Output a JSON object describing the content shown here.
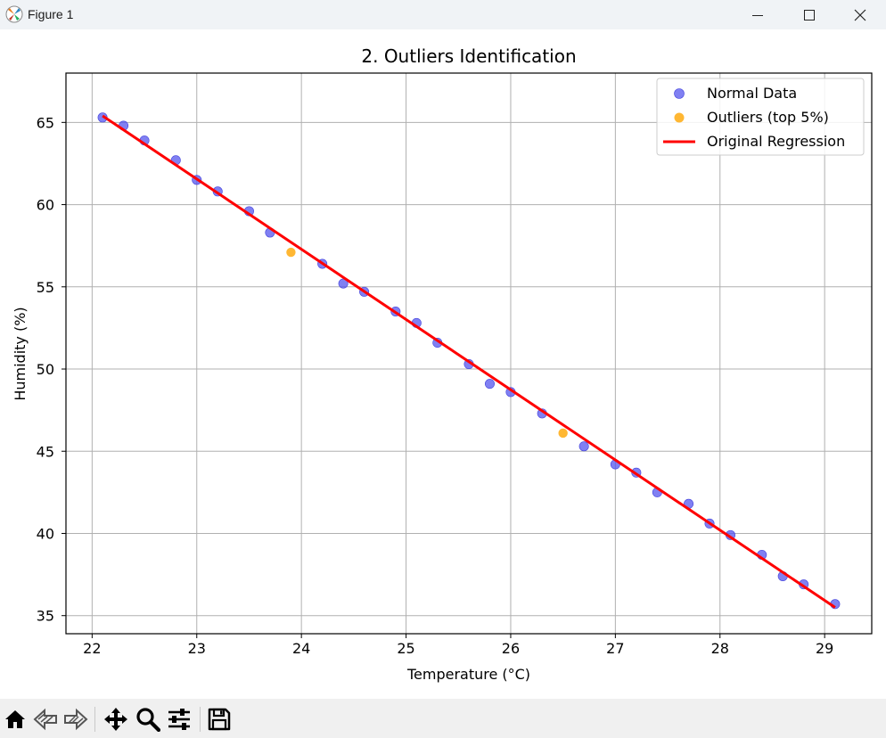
{
  "window": {
    "title": "Figure 1"
  },
  "toolbar": {
    "buttons": [
      "home-icon",
      "back-icon",
      "forward-icon",
      "pan-icon",
      "zoom-icon",
      "configure-subplots-icon",
      "save-icon"
    ]
  },
  "chart_data": {
    "type": "scatter",
    "title": "2. Outliers Identification",
    "xlabel": "Temperature (°C)",
    "ylabel": "Humidity (%)",
    "xlim": [
      21.75,
      29.45
    ],
    "ylim": [
      33.9,
      68.0
    ],
    "xticks": [
      22,
      23,
      24,
      25,
      26,
      27,
      28,
      29
    ],
    "yticks": [
      35,
      40,
      45,
      50,
      55,
      60,
      65
    ],
    "grid": true,
    "legend_position": "top-right",
    "series": [
      {
        "name": "Normal Data",
        "kind": "scatter",
        "color": "#5555ee",
        "points": [
          [
            22.1,
            65.3
          ],
          [
            22.3,
            64.8
          ],
          [
            22.5,
            63.9
          ],
          [
            22.8,
            62.7
          ],
          [
            23.0,
            61.5
          ],
          [
            23.2,
            60.8
          ],
          [
            23.5,
            59.6
          ],
          [
            23.7,
            58.3
          ],
          [
            24.2,
            56.4
          ],
          [
            24.4,
            55.2
          ],
          [
            24.6,
            54.7
          ],
          [
            24.9,
            53.5
          ],
          [
            25.1,
            52.8
          ],
          [
            25.3,
            51.6
          ],
          [
            25.6,
            50.3
          ],
          [
            25.8,
            49.1
          ],
          [
            26.0,
            48.6
          ],
          [
            26.3,
            47.3
          ],
          [
            26.7,
            45.3
          ],
          [
            27.0,
            44.2
          ],
          [
            27.2,
            43.7
          ],
          [
            27.4,
            42.5
          ],
          [
            27.7,
            41.8
          ],
          [
            27.9,
            40.6
          ],
          [
            28.1,
            39.9
          ],
          [
            28.4,
            38.7
          ],
          [
            28.6,
            37.4
          ],
          [
            28.8,
            36.9
          ],
          [
            29.1,
            35.7
          ]
        ]
      },
      {
        "name": "Outliers (top 5%)",
        "kind": "scatter",
        "color": "#ffa500",
        "points": [
          [
            23.9,
            57.1
          ],
          [
            26.5,
            46.1
          ]
        ]
      },
      {
        "name": "Original Regression",
        "kind": "line",
        "color": "#ff0000",
        "points": [
          [
            22.1,
            65.4
          ],
          [
            29.1,
            35.5
          ]
        ]
      }
    ]
  }
}
